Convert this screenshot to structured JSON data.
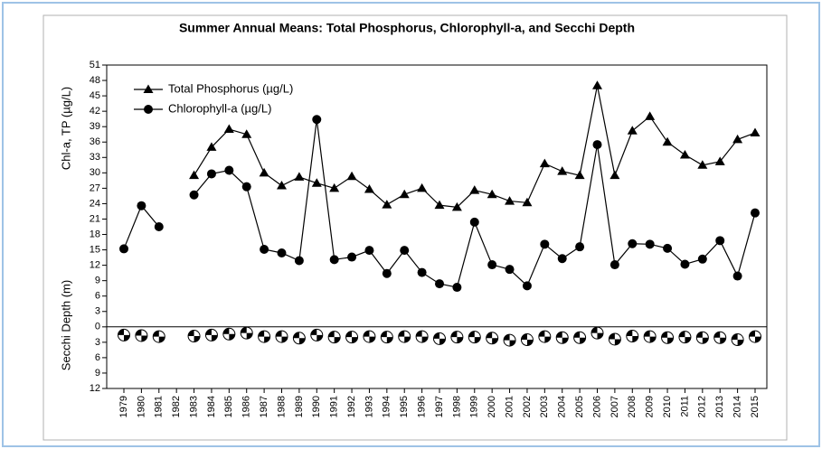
{
  "chart_data": {
    "type": "line",
    "title": "Summer Annual Means: Total Phosphorus, Chlorophyll-a, and Secchi Depth",
    "ylabel_top": "Chl-a, TP (µg/L)",
    "ylabel_bottom": "Secchi Depth (m)",
    "categories": [
      "1979",
      "1980",
      "1981",
      "1982",
      "1983",
      "1984",
      "1985",
      "1986",
      "1987",
      "1988",
      "1989",
      "1990",
      "1991",
      "1992",
      "1993",
      "1994",
      "1995",
      "1996",
      "1997",
      "1998",
      "1999",
      "2000",
      "2001",
      "2002",
      "2003",
      "2004",
      "2005",
      "2006",
      "2007",
      "2008",
      "2009",
      "2010",
      "2011",
      "2012",
      "2013",
      "2014",
      "2015"
    ],
    "series": [
      {
        "name": "Total Phosphorus (µg/L)",
        "color": "#000000",
        "marker": "triangle",
        "values": [
          null,
          null,
          null,
          null,
          29.5,
          35,
          38.5,
          37.5,
          30,
          27.5,
          29.2,
          28,
          27,
          29.3,
          26.8,
          23.8,
          25.8,
          27,
          23.7,
          23.3,
          26.6,
          25.8,
          24.5,
          24.2,
          31.8,
          30.3,
          29.5,
          47,
          29.5,
          38.2,
          41,
          36,
          33.5,
          31.5,
          32.2,
          36.5,
          37.8
        ]
      },
      {
        "name": "Chlorophyll-a (µg/L)",
        "color": "#000000",
        "marker": "circle",
        "values": [
          15.2,
          23.6,
          19.5,
          null,
          25.7,
          29.8,
          30.5,
          27.3,
          15.1,
          14.4,
          12.9,
          40.4,
          13.1,
          13.6,
          14.9,
          10.4,
          14.9,
          10.6,
          8.4,
          7.7,
          20.4,
          12.1,
          11.2,
          8,
          16.1,
          13.3,
          15.6,
          35.5,
          12.1,
          16.2,
          16.1,
          15.3,
          12.2,
          13.2,
          16.8,
          9.9,
          22.2
        ]
      }
    ],
    "secchi": {
      "color": "#000000",
      "marker": "secchi-disk",
      "values": [
        -1.6,
        -1.7,
        -1.9,
        null,
        -1.8,
        -1.6,
        -1.4,
        -1.2,
        -1.9,
        -1.9,
        -2.2,
        -1.6,
        -2,
        -2,
        -1.9,
        -2,
        -1.9,
        -1.9,
        -2.3,
        -2,
        -2,
        -2.2,
        -2.6,
        -2.5,
        -1.9,
        -2.1,
        -2.1,
        -1.2,
        -2.4,
        -1.8,
        -1.9,
        -2.1,
        -2,
        -2.1,
        -2.1,
        -2.5,
        -1.9
      ]
    },
    "ylim": [
      -12,
      51
    ],
    "yticks": [
      51,
      48,
      45,
      42,
      39,
      36,
      33,
      30,
      27,
      24,
      21,
      18,
      15,
      12,
      9,
      6,
      3,
      0,
      {
        "value": -3,
        "label": "3"
      },
      {
        "value": -6,
        "label": "6"
      },
      {
        "value": -9,
        "label": "9"
      },
      {
        "value": -12,
        "label": "12"
      }
    ],
    "legend": "upper left",
    "grid": false
  }
}
